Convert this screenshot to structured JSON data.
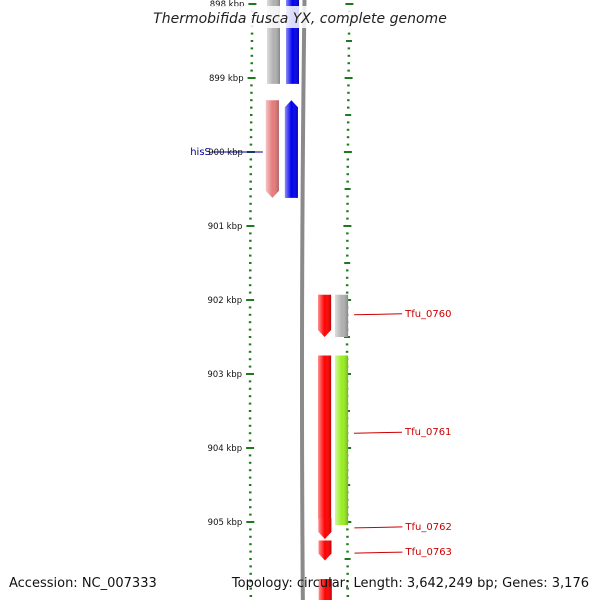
{
  "title": "Thermobifida fusca YX, complete genome",
  "footer": {
    "accession": "Accession: NC_007333",
    "summary": "Topology: circular; Length: 3,642,249 bp; Genes: 3,176"
  },
  "colors": {
    "backbone": "#8a8a8a",
    "tick": "#1f7a1f",
    "gene_label": "#cc0000",
    "his_label": "#00008b",
    "gray_feature": "#b0b0b0",
    "blue_feature": "#0000ee",
    "pink_feature": "#e67a7a",
    "red_feature": "#ff0000",
    "green_feature": "#99ee22"
  },
  "kbp_ticks": [
    {
      "kbp": 898,
      "label": "898 kbp"
    },
    {
      "kbp": 899,
      "label": "899 kbp"
    },
    {
      "kbp": 900,
      "label": "900 kbp"
    },
    {
      "kbp": 901,
      "label": "901 kbp"
    },
    {
      "kbp": 902,
      "label": "902 kbp"
    },
    {
      "kbp": 903,
      "label": "903 kbp"
    },
    {
      "kbp": 904,
      "label": "904 kbp"
    },
    {
      "kbp": 905,
      "label": "905 kbp"
    }
  ],
  "features": [
    {
      "name": "gray-upper-left",
      "color": "gray_feature",
      "start_kbp": 897.8,
      "end_kbp": 899.08,
      "lane": "far-left",
      "arrow": "none"
    },
    {
      "name": "blue-upper",
      "color": "blue_feature",
      "start_kbp": 897.8,
      "end_kbp": 899.08,
      "lane": "left",
      "arrow": "none"
    },
    {
      "name": "hisS",
      "color": "pink_feature",
      "start_kbp": 899.3,
      "end_kbp": 900.62,
      "lane": "far-left",
      "arrow": "down"
    },
    {
      "name": "blue-lower",
      "color": "blue_feature",
      "start_kbp": 899.3,
      "end_kbp": 900.62,
      "lane": "left",
      "arrow": "up"
    },
    {
      "name": "Tfu_0760",
      "color": "red_feature",
      "start_kbp": 901.93,
      "end_kbp": 902.5,
      "lane": "right",
      "arrow": "down"
    },
    {
      "name": "gray-right",
      "color": "gray_feature",
      "start_kbp": 901.93,
      "end_kbp": 902.5,
      "lane": "far-right",
      "arrow": "none"
    },
    {
      "name": "Tfu_0761",
      "color": "red_feature",
      "start_kbp": 902.75,
      "end_kbp": 905.04,
      "lane": "right",
      "arrow": "down"
    },
    {
      "name": "green-right",
      "color": "green_feature",
      "start_kbp": 902.75,
      "end_kbp": 905.04,
      "lane": "far-right",
      "arrow": "none"
    },
    {
      "name": "Tfu_0762",
      "color": "red_feature",
      "start_kbp": 904.95,
      "end_kbp": 905.23,
      "lane": "right",
      "arrow": "down"
    },
    {
      "name": "Tfu_0763",
      "color": "red_feature",
      "start_kbp": 905.25,
      "end_kbp": 905.52,
      "lane": "right",
      "arrow": "down"
    },
    {
      "name": "red-bottom",
      "color": "red_feature",
      "start_kbp": 905.77,
      "end_kbp": 906.1,
      "lane": "right",
      "arrow": "none"
    }
  ],
  "gene_labels": [
    {
      "text": "hisS",
      "kbp": 900.0,
      "side": "left",
      "color": "his_label"
    },
    {
      "text": "Tfu_0760",
      "kbp": 902.2,
      "side": "right",
      "color": "gene_label"
    },
    {
      "text": "Tfu_0761",
      "kbp": 903.8,
      "side": "right",
      "color": "gene_label"
    },
    {
      "text": "Tfu_0762",
      "kbp": 905.08,
      "side": "right",
      "color": "gene_label"
    },
    {
      "text": "Tfu_0763",
      "kbp": 905.42,
      "side": "right",
      "color": "gene_label"
    }
  ]
}
